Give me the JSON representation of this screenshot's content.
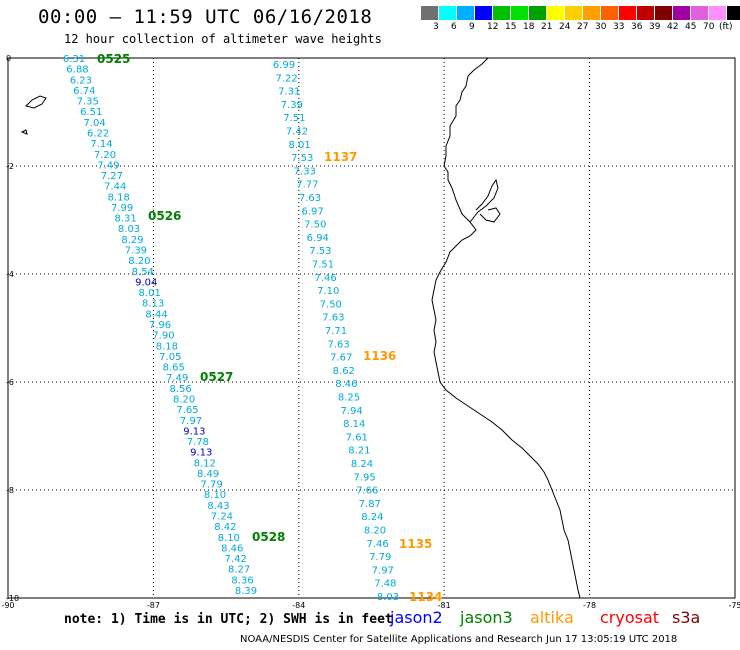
{
  "title": "00:00 – 11:59 UTC 06/16/2018",
  "subtitle": "12 hour collection of altimeter wave heights",
  "colorbar": {
    "colors": [
      "#707070",
      "#00ffff",
      "#00b0ff",
      "#0000ff",
      "#00c000",
      "#00e000",
      "#00a000",
      "#ffff00",
      "#ffd000",
      "#ffa000",
      "#ff6000",
      "#ff0000",
      "#c00000",
      "#800000",
      "#a000a0",
      "#e060e0",
      "#ff90ff",
      "#000000"
    ],
    "labels": [
      "3",
      "6",
      "9",
      "12",
      "15",
      "18",
      "21",
      "24",
      "27",
      "30",
      "33",
      "36",
      "39",
      "42",
      "45",
      "70",
      "(ft)"
    ]
  },
  "map": {
    "lon_ticks": [
      "-90",
      "-87",
      "-84",
      "-81",
      "-78",
      "-75"
    ],
    "lat_ticks": [
      "0",
      "-2",
      "-4",
      "-6",
      "-8",
      "-10"
    ]
  },
  "tracks": [
    {
      "name": "west-track",
      "heights": [
        "6.31",
        "6.88",
        "6.23",
        "6.74",
        "7.35",
        "6.51",
        "7.04",
        "6.22",
        "7.14",
        "7.20",
        "7.49",
        "7.27",
        "7.44",
        "8.18",
        "7.99",
        "8.31",
        "8.03",
        "8.29",
        "7.39",
        "8.20",
        "8.54",
        "9.04",
        "8.01",
        "8.13",
        "8.44",
        "7.96",
        "7.90",
        "8.18",
        "7.05",
        "8.65",
        "7.49",
        "8.56",
        "8.20",
        "7.65",
        "7.97",
        "9.13",
        "7.78",
        "9.13",
        "8.12",
        "8.49",
        "7.79",
        "8.10",
        "8.43",
        "7.24",
        "8.42",
        "8.10",
        "8.46",
        "7.42",
        "8.27",
        "8.36",
        "8.39"
      ],
      "colors": {
        "9.04": "#0000c0",
        "9.13": "#0000c0"
      }
    },
    {
      "name": "east-track",
      "heights": [
        "6.99",
        "7.22",
        "7.31",
        "7.39",
        "7.51",
        "7.42",
        "8.01",
        "7.53",
        "7.33",
        "7.77",
        "7.63",
        "6.97",
        "7.50",
        "6.94",
        "7.53",
        "7.51",
        "7.46",
        "7.10",
        "7.50",
        "7.63",
        "7.71",
        "7.63",
        "7.67",
        "8.62",
        "8.46",
        "8.25",
        "7.94",
        "8.14",
        "7.61",
        "8.21",
        "8.24",
        "7.95",
        "7.66",
        "7.87",
        "8.24",
        "8.20",
        "7.46",
        "7.79",
        "7.97",
        "7.48",
        "8.03"
      ],
      "colors": {}
    }
  ],
  "pass_labels": [
    {
      "text": "0525",
      "color": "#008000"
    },
    {
      "text": "0526",
      "color": "#008000"
    },
    {
      "text": "0527",
      "color": "#008000"
    },
    {
      "text": "0528",
      "color": "#008000"
    },
    {
      "text": "1137",
      "color": "#ff9900"
    },
    {
      "text": "1136",
      "color": "#ff9900"
    },
    {
      "text": "1135",
      "color": "#ff9900"
    },
    {
      "text": "1134",
      "color": "#ff9900"
    }
  ],
  "note": "note: 1) Time is in UTC; 2) SWH is in feet",
  "legend": [
    {
      "label": "jason2",
      "color": "#0000ff"
    },
    {
      "label": "jason3",
      "color": "#008000"
    },
    {
      "label": "altika",
      "color": "#ff9900"
    },
    {
      "label": "cryosat",
      "color": "#ff0000"
    },
    {
      "label": "s3a",
      "color": "#800000"
    }
  ],
  "footer": "NOAA/NESDIS Center for Satellite Applications and Research   Jun 17 13:05:19 UTC 2018",
  "height_color": "#00aadd"
}
